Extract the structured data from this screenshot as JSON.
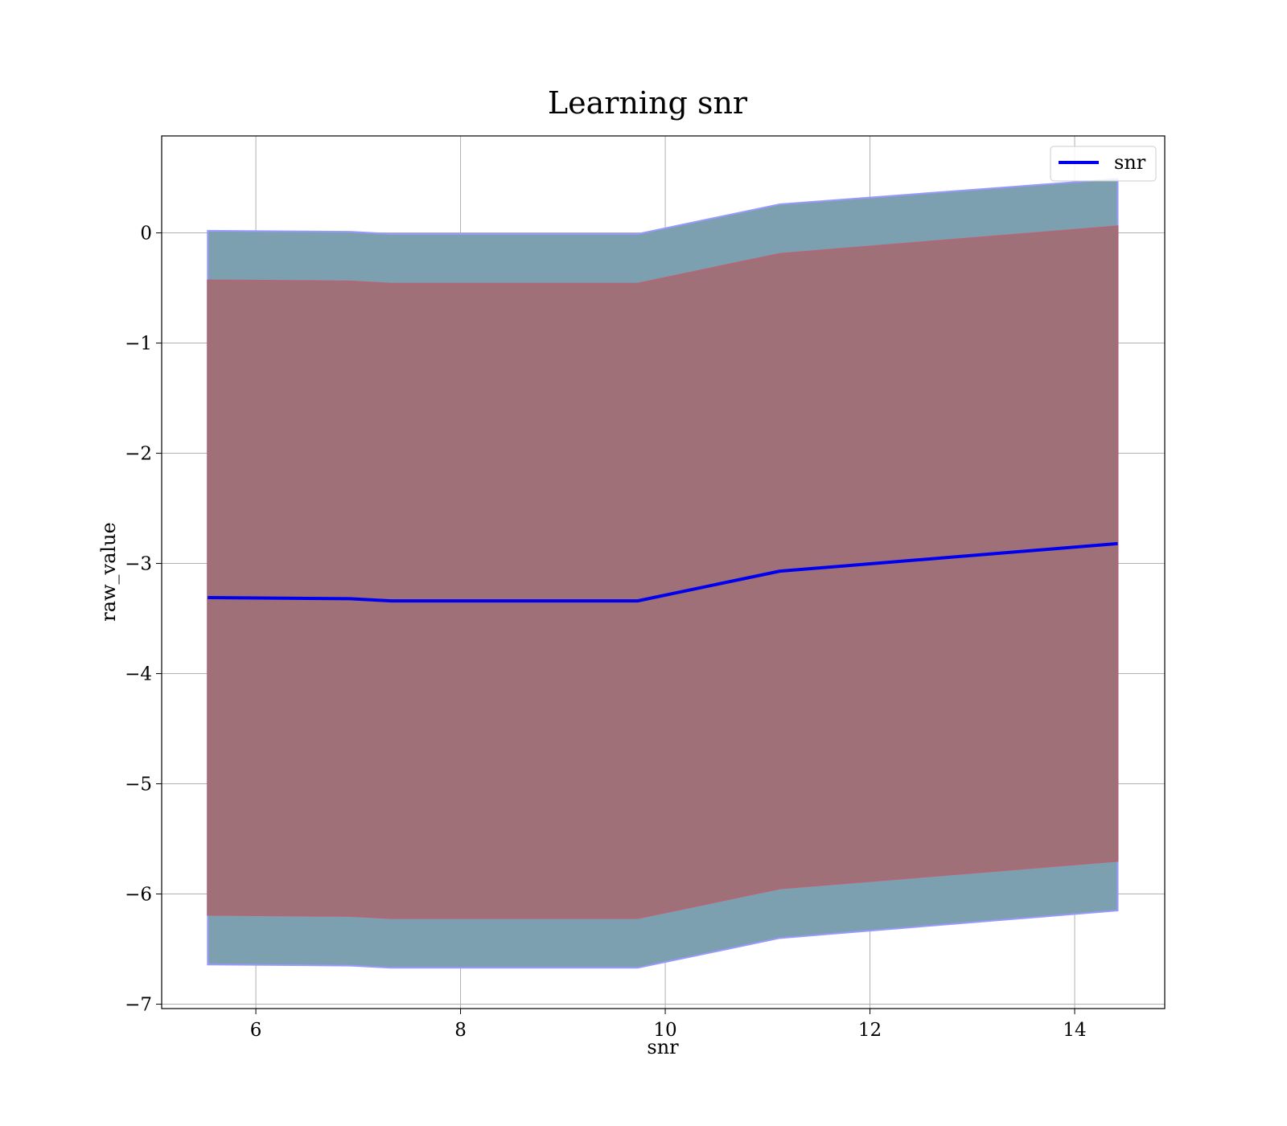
{
  "chart_data": {
    "type": "line",
    "title": "Learning snr",
    "xlabel": "snr",
    "ylabel": "raw_value",
    "xlim": [
      5.08,
      14.88
    ],
    "ylim": [
      -7.04,
      0.88
    ],
    "xticks": [
      6,
      8,
      10,
      12,
      14
    ],
    "yticks": [
      0,
      -1,
      -2,
      -3,
      -4,
      -5,
      -6,
      -7
    ],
    "xtick_labels": [
      "6",
      "8",
      "10",
      "12",
      "14"
    ],
    "ytick_labels": [
      "0",
      "−1",
      "−2",
      "−3",
      "−4",
      "−5",
      "−6",
      "−7"
    ],
    "grid": true,
    "legend_position": "top-right",
    "x": [
      5.53,
      6.92,
      7.32,
      9.73,
      11.12,
      14.42
    ],
    "series": [
      {
        "name": "snr",
        "color": "#0000ee",
        "values": [
          -3.31,
          -3.32,
          -3.34,
          -3.34,
          -3.07,
          -2.82
        ]
      }
    ],
    "bands": [
      {
        "color": "#7ca0b0",
        "edge_color": "#9999ff",
        "upper": [
          0.02,
          0.01,
          -0.01,
          -0.01,
          0.26,
          0.49
        ],
        "lower": [
          -6.64,
          -6.65,
          -6.67,
          -6.67,
          -6.4,
          -6.15
        ]
      },
      {
        "color": "#a07078",
        "edge_color": "#b06878",
        "upper": [
          -0.43,
          -0.44,
          -0.46,
          -0.46,
          -0.19,
          0.06
        ],
        "lower": [
          -6.19,
          -6.2,
          -6.22,
          -6.22,
          -5.95,
          -5.7
        ]
      }
    ]
  }
}
